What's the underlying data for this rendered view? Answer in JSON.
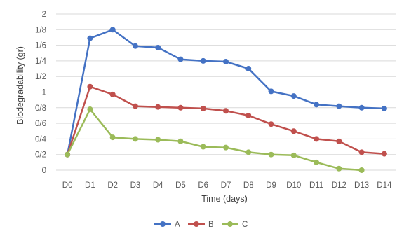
{
  "chart_data": {
    "type": "line",
    "xlabel": "Time (days)",
    "ylabel": "Biodegradability (gr)",
    "categories": [
      "D0",
      "D1",
      "D2",
      "D3",
      "D4",
      "D5",
      "D6",
      "D7",
      "D8",
      "D9",
      "D10",
      "D11",
      "D12",
      "D13",
      "D14"
    ],
    "y_tick_labels": [
      "0",
      "0/2",
      "0/4",
      "0/6",
      "0/8",
      "1",
      "1/2",
      "1/4",
      "1/6",
      "1/8",
      "2"
    ],
    "ylim": [
      0,
      2
    ],
    "grid": "horizontal",
    "legend_position": "bottom",
    "series": [
      {
        "name": "A",
        "color": "#4472C4",
        "values": [
          0.2,
          1.69,
          1.8,
          1.59,
          1.57,
          1.42,
          1.4,
          1.39,
          1.3,
          1.01,
          0.95,
          0.84,
          0.82,
          0.8,
          0.79
        ]
      },
      {
        "name": "B",
        "color": "#C0504D",
        "values": [
          0.2,
          1.07,
          0.97,
          0.82,
          0.81,
          0.8,
          0.79,
          0.76,
          0.7,
          0.59,
          0.5,
          0.4,
          0.37,
          0.23,
          0.21
        ]
      },
      {
        "name": "C",
        "color": "#9BBB59",
        "values": [
          0.2,
          0.78,
          0.42,
          0.4,
          0.39,
          0.37,
          0.3,
          0.29,
          0.23,
          0.2,
          0.19,
          0.1,
          0.02,
          0.0,
          null
        ]
      }
    ]
  }
}
